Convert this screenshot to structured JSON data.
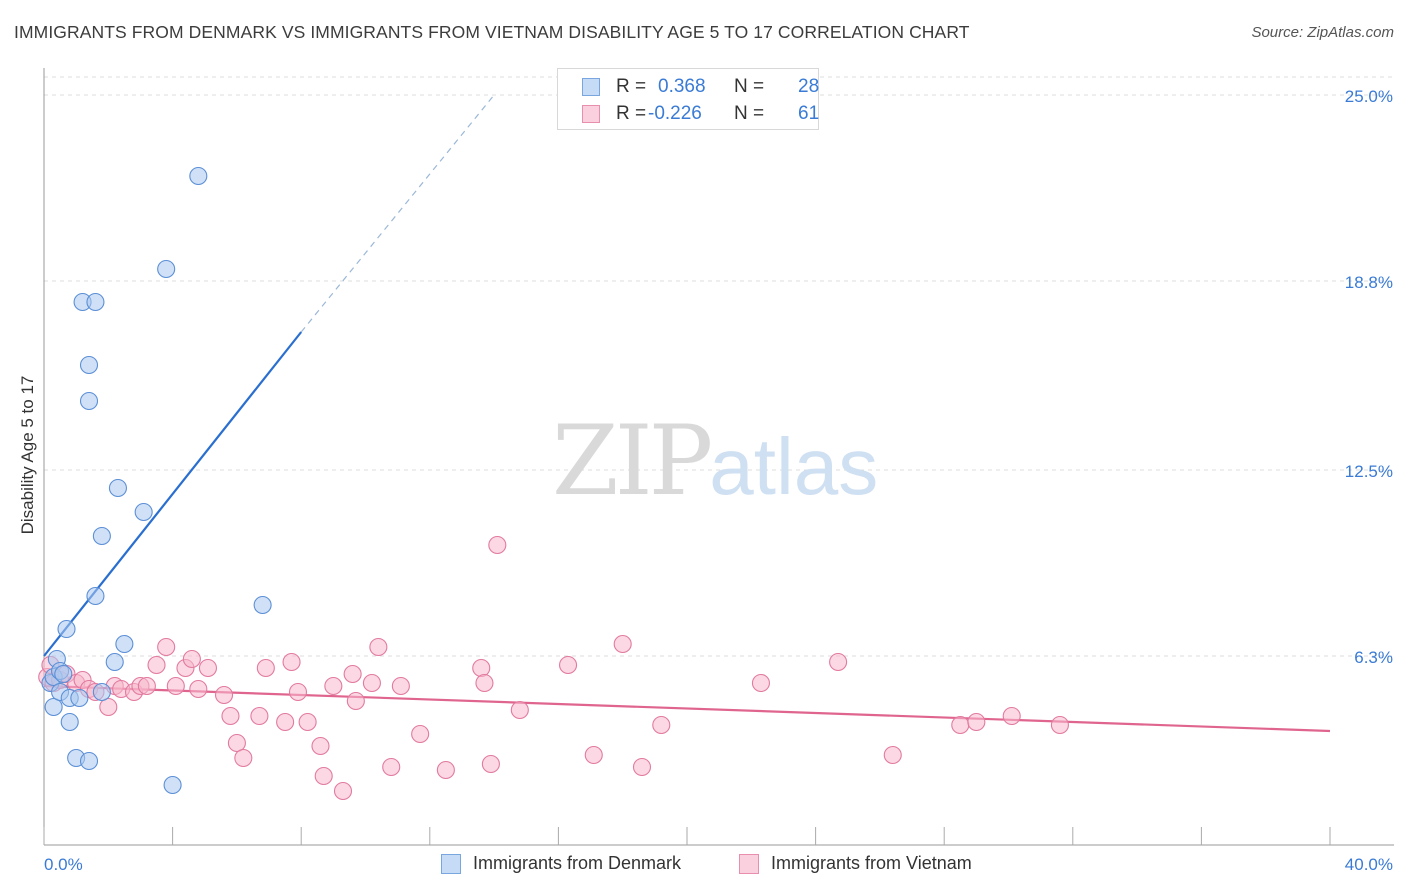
{
  "title": "IMMIGRANTS FROM DENMARK VS IMMIGRANTS FROM VIETNAM DISABILITY AGE 5 TO 17 CORRELATION CHART",
  "source": "Source: ZipAtlas.com",
  "watermark": {
    "zip": "ZIP",
    "atlas": "atlas"
  },
  "stats": [
    {
      "r_label": "R =",
      "r_value": "0.368",
      "n_label": "N =",
      "n_value": "28",
      "color": "#a9c8f0"
    },
    {
      "r_label": "R =",
      "r_value": "-0.226",
      "n_label": "N =",
      "n_value": "61",
      "color": "#f7b8cc"
    }
  ],
  "colors": {
    "denmark_fill": "#a9c8f0",
    "denmark_stroke": "#5b8fd6",
    "denmark_line": "#2a6fd0",
    "vietnam_fill": "#f7b8cc",
    "vietnam_stroke": "#e27aa0",
    "vietnam_line": "#e0658e",
    "axis_text": "#3a7bd5",
    "grid": "#dcdcdc"
  },
  "chart_data": {
    "type": "scatter",
    "title": "IMMIGRANTS FROM DENMARK VS IMMIGRANTS FROM VIETNAM DISABILITY AGE 5 TO 17 CORRELATION CHART",
    "xlabel": "",
    "ylabel": "Disability Age 5 to 17",
    "xlim": [
      0,
      40
    ],
    "ylim": [
      0,
      25.6
    ],
    "x_tick_labels": [
      "0.0%",
      "40.0%"
    ],
    "y_ticks": [
      6.3,
      12.5,
      18.8,
      25.0
    ],
    "y_tick_labels": [
      "6.3%",
      "12.5%",
      "18.8%",
      "25.0%"
    ],
    "series": [
      {
        "name": "Immigrants from Denmark",
        "points": [
          [
            0.2,
            5.4
          ],
          [
            0.3,
            4.6
          ],
          [
            0.3,
            5.6
          ],
          [
            0.4,
            6.2
          ],
          [
            0.5,
            5.8
          ],
          [
            0.5,
            5.1
          ],
          [
            0.6,
            5.7
          ],
          [
            0.7,
            7.2
          ],
          [
            0.8,
            4.9
          ],
          [
            0.8,
            4.1
          ],
          [
            1.0,
            2.9
          ],
          [
            1.1,
            4.9
          ],
          [
            1.2,
            18.1
          ],
          [
            1.4,
            2.8
          ],
          [
            1.4,
            14.8
          ],
          [
            1.4,
            16.0
          ],
          [
            1.6,
            18.1
          ],
          [
            1.6,
            8.3
          ],
          [
            1.8,
            10.3
          ],
          [
            1.8,
            5.1
          ],
          [
            2.2,
            6.1
          ],
          [
            2.3,
            11.9
          ],
          [
            2.5,
            6.7
          ],
          [
            3.1,
            11.1
          ],
          [
            3.8,
            19.2
          ],
          [
            4.0,
            2.0
          ],
          [
            4.8,
            22.3
          ],
          [
            6.8,
            8.0
          ]
        ],
        "trend": {
          "x": [
            0.0,
            8.0
          ],
          "y": [
            6.3,
            17.1
          ],
          "dashed_to": [
            14.0,
            25.0
          ]
        }
      },
      {
        "name": "Immigrants from Vietnam",
        "points": [
          [
            0.1,
            5.6
          ],
          [
            0.2,
            6.0
          ],
          [
            0.3,
            5.4
          ],
          [
            0.5,
            5.5
          ],
          [
            0.7,
            5.7
          ],
          [
            1.0,
            5.4
          ],
          [
            1.2,
            5.5
          ],
          [
            1.4,
            5.2
          ],
          [
            1.6,
            5.1
          ],
          [
            2.0,
            4.6
          ],
          [
            2.2,
            5.3
          ],
          [
            2.4,
            5.2
          ],
          [
            2.8,
            5.1
          ],
          [
            3.0,
            5.3
          ],
          [
            3.2,
            5.3
          ],
          [
            3.5,
            6.0
          ],
          [
            3.8,
            6.6
          ],
          [
            4.1,
            5.3
          ],
          [
            4.4,
            5.9
          ],
          [
            4.6,
            6.2
          ],
          [
            4.8,
            5.2
          ],
          [
            5.1,
            5.9
          ],
          [
            5.6,
            5.0
          ],
          [
            5.8,
            4.3
          ],
          [
            6.0,
            3.4
          ],
          [
            6.2,
            2.9
          ],
          [
            6.7,
            4.3
          ],
          [
            6.9,
            5.9
          ],
          [
            7.5,
            4.1
          ],
          [
            7.7,
            6.1
          ],
          [
            7.9,
            5.1
          ],
          [
            8.2,
            4.1
          ],
          [
            8.6,
            3.3
          ],
          [
            8.7,
            2.3
          ],
          [
            9.0,
            5.3
          ],
          [
            9.3,
            1.8
          ],
          [
            9.6,
            5.7
          ],
          [
            9.7,
            4.8
          ],
          [
            10.2,
            5.4
          ],
          [
            10.4,
            6.6
          ],
          [
            10.8,
            2.6
          ],
          [
            11.1,
            5.3
          ],
          [
            11.7,
            3.7
          ],
          [
            12.5,
            2.5
          ],
          [
            13.6,
            5.9
          ],
          [
            13.7,
            5.4
          ],
          [
            13.9,
            2.7
          ],
          [
            14.1,
            10.0
          ],
          [
            14.8,
            4.5
          ],
          [
            16.3,
            6.0
          ],
          [
            17.1,
            3.0
          ],
          [
            18.0,
            6.7
          ],
          [
            18.6,
            2.6
          ],
          [
            19.2,
            4.0
          ],
          [
            22.3,
            5.4
          ],
          [
            24.7,
            6.1
          ],
          [
            26.4,
            3.0
          ],
          [
            28.5,
            4.0
          ],
          [
            29.0,
            4.1
          ],
          [
            30.1,
            4.3
          ],
          [
            31.6,
            4.0
          ]
        ],
        "trend": {
          "x": [
            0.0,
            40.0
          ],
          "y": [
            5.3,
            3.8
          ]
        }
      }
    ]
  },
  "legend": [
    {
      "label": "Immigrants from Denmark"
    },
    {
      "label": "Immigrants from Vietnam"
    }
  ]
}
